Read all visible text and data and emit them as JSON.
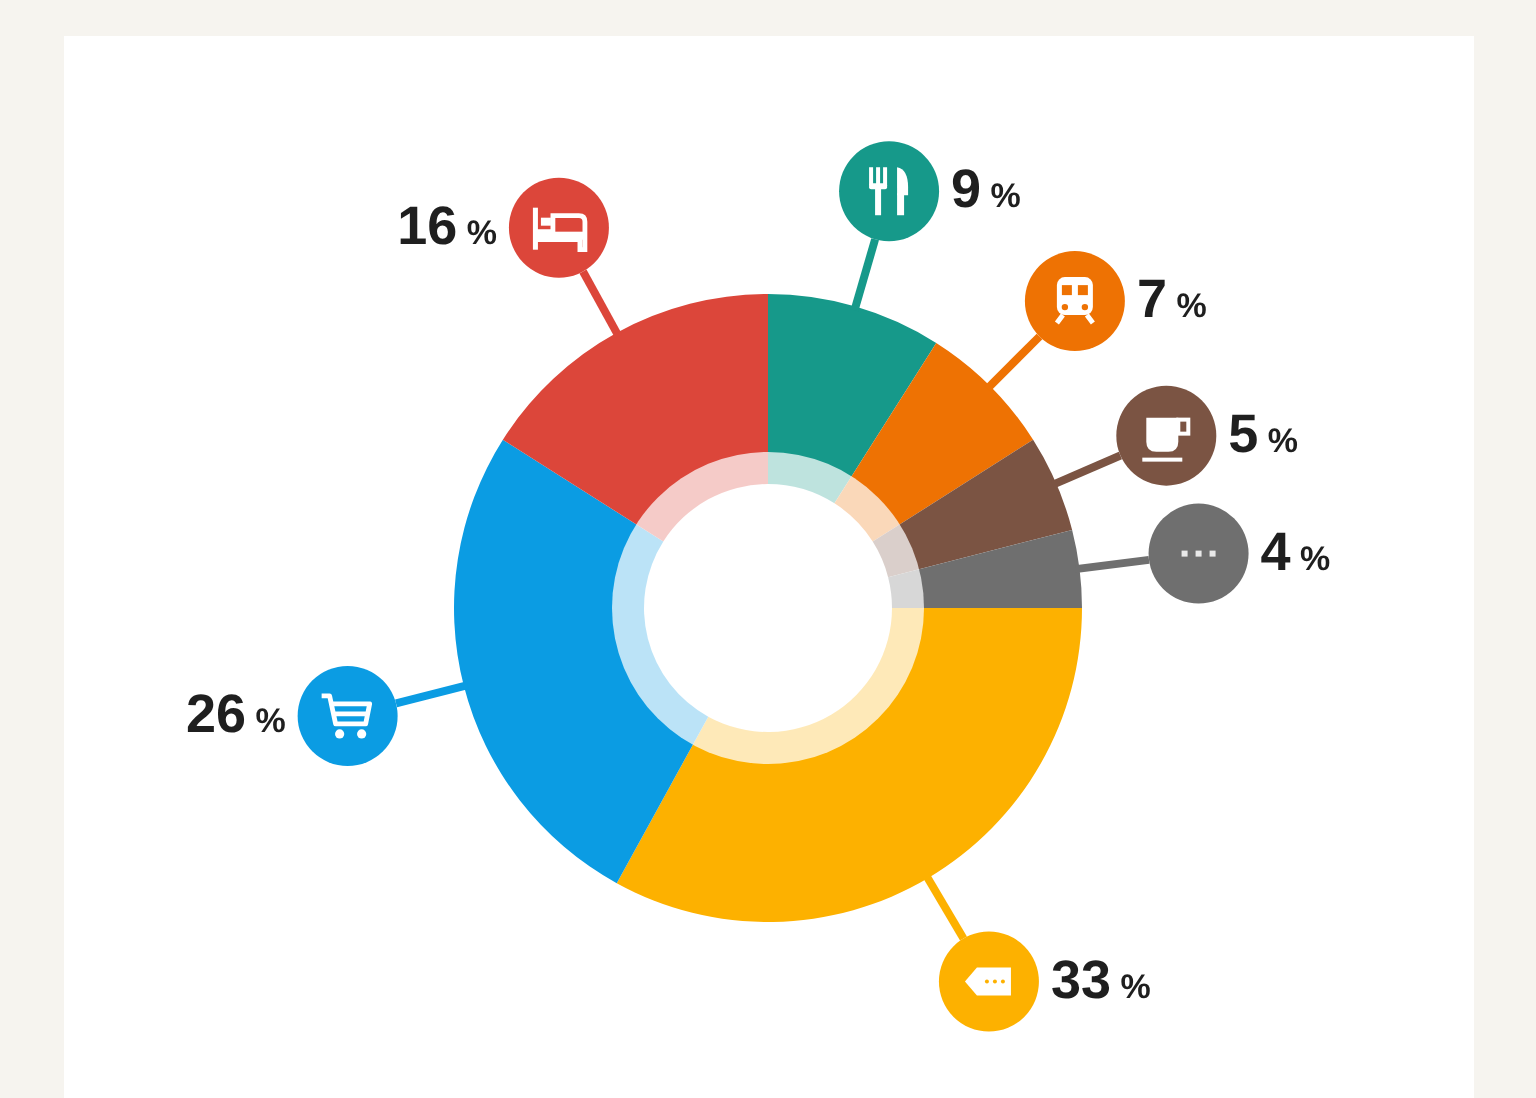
{
  "chart_data": {
    "type": "donut",
    "categories": [
      null,
      null,
      null,
      null,
      null,
      null,
      null
    ],
    "values": [
      9,
      7,
      5,
      4,
      33,
      26,
      16
    ],
    "colors": [
      "#16998a",
      "#ee7203",
      "#7b5443",
      "#6f6f6f",
      "#fdb100",
      "#0b9ce3",
      "#dc463a"
    ],
    "value_labels": [
      "9 %",
      "7 %",
      "5 %",
      "4 %",
      "33 %",
      "26 %",
      "16 %"
    ]
  }
}
